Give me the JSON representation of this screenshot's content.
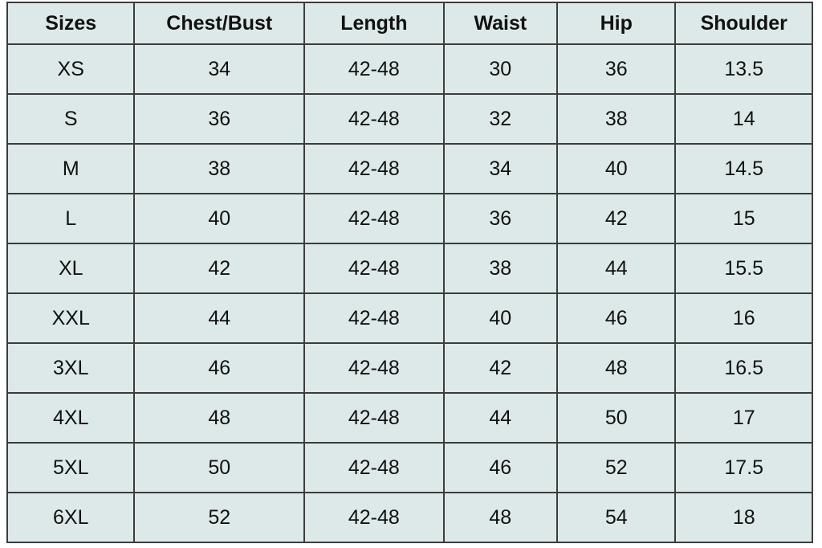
{
  "size_chart": {
    "columns": [
      "Sizes",
      "Chest/Bust",
      "Length",
      "Waist",
      "Hip",
      "Shoulder"
    ],
    "rows": [
      {
        "size": "XS",
        "chest_bust": "34",
        "length": "42-48",
        "waist": "30",
        "hip": "36",
        "shoulder": "13.5"
      },
      {
        "size": "S",
        "chest_bust": "36",
        "length": "42-48",
        "waist": "32",
        "hip": "38",
        "shoulder": "14"
      },
      {
        "size": "M",
        "chest_bust": "38",
        "length": "42-48",
        "waist": "34",
        "hip": "40",
        "shoulder": "14.5"
      },
      {
        "size": "L",
        "chest_bust": "40",
        "length": "42-48",
        "waist": "36",
        "hip": "42",
        "shoulder": "15"
      },
      {
        "size": "XL",
        "chest_bust": "42",
        "length": "42-48",
        "waist": "38",
        "hip": "44",
        "shoulder": "15.5"
      },
      {
        "size": "XXL",
        "chest_bust": "44",
        "length": "42-48",
        "waist": "40",
        "hip": "46",
        "shoulder": "16"
      },
      {
        "size": "3XL",
        "chest_bust": "46",
        "length": "42-48",
        "waist": "42",
        "hip": "48",
        "shoulder": "16.5"
      },
      {
        "size": "4XL",
        "chest_bust": "48",
        "length": "42-48",
        "waist": "44",
        "hip": "50",
        "shoulder": "17"
      },
      {
        "size": "5XL",
        "chest_bust": "50",
        "length": "42-48",
        "waist": "46",
        "hip": "52",
        "shoulder": "17.5"
      },
      {
        "size": "6XL",
        "chest_bust": "52",
        "length": "42-48",
        "waist": "48",
        "hip": "54",
        "shoulder": "18"
      }
    ],
    "colors": {
      "cell_background": "#dde9e9",
      "border": "#3c3c3c",
      "text": "#111111",
      "page_background": "#ffffff"
    }
  }
}
